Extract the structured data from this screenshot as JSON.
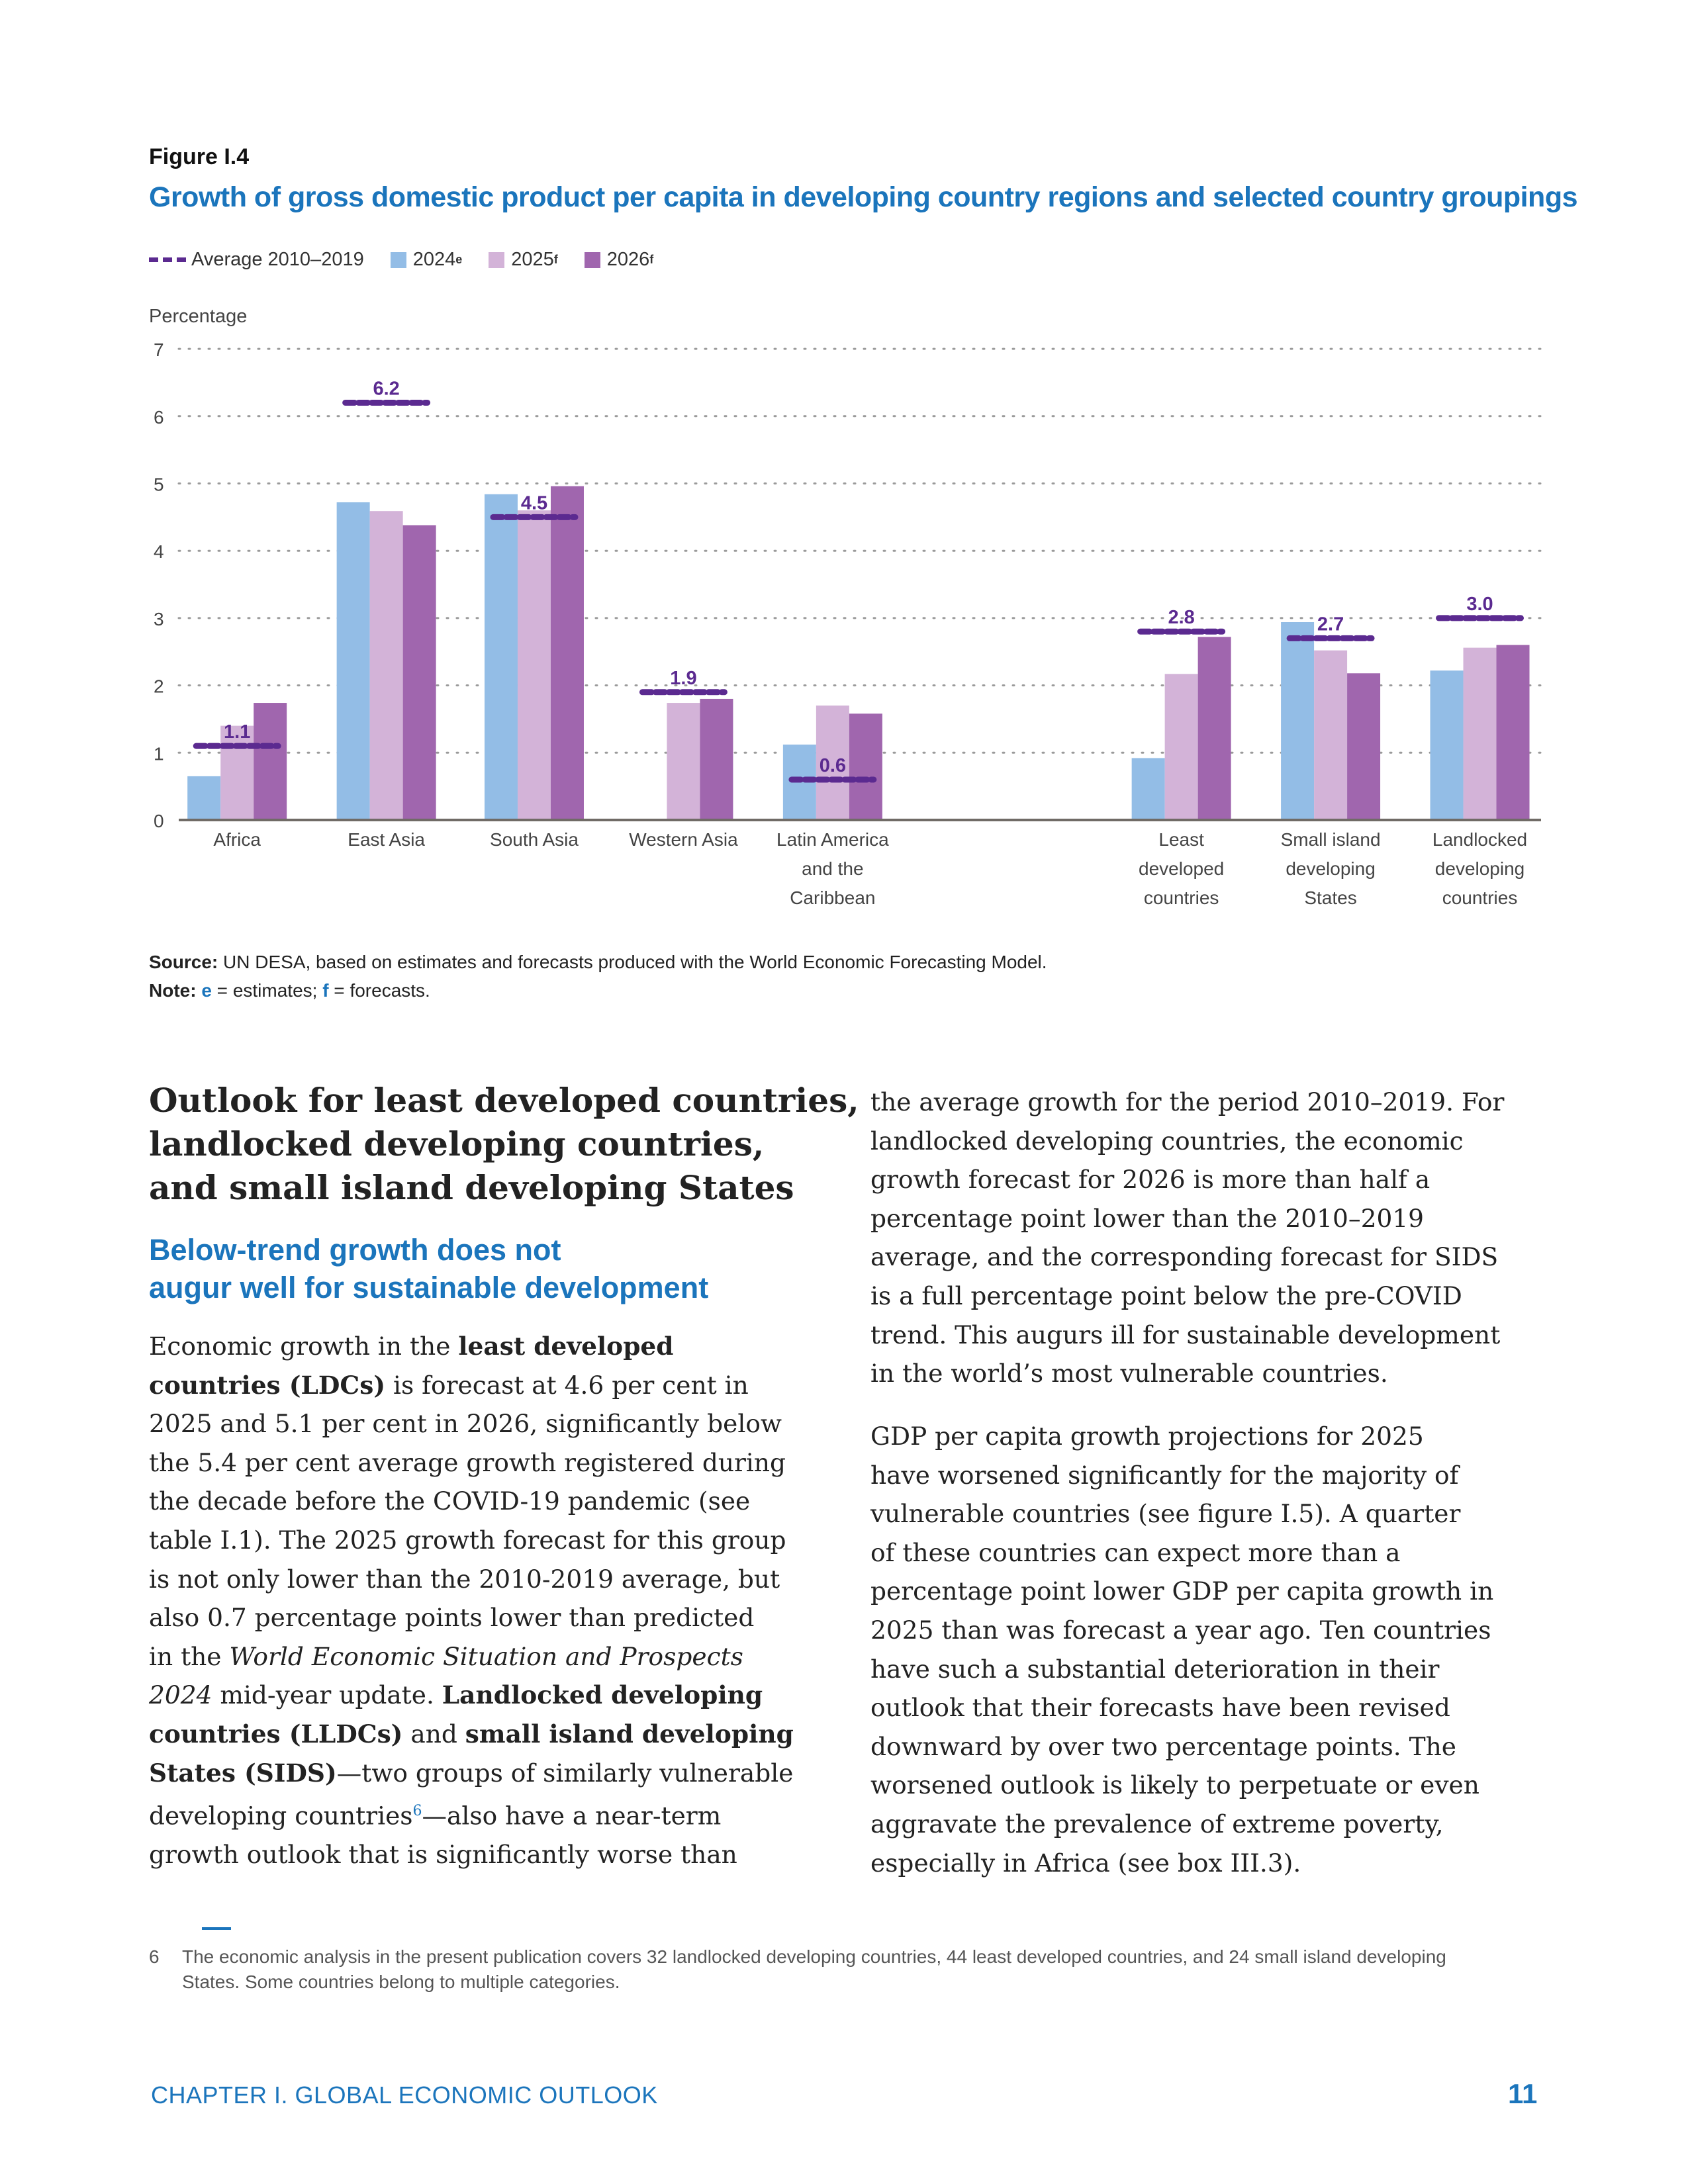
{
  "figure": {
    "label": "Figure I.4",
    "title": "Growth of gross domestic product per capita in developing country regions and selected country groupings",
    "legend": [
      {
        "label": "Average 2010–2019",
        "sup": "",
        "kind": "dash",
        "color": "#5b2a90"
      },
      {
        "label": "2024",
        "sup": "e",
        "kind": "square",
        "color": "#93bde6"
      },
      {
        "label": "2025",
        "sup": "f",
        "kind": "square",
        "color": "#d3b3d8"
      },
      {
        "label": "2026",
        "sup": "f",
        "kind": "square",
        "color": "#a066ae"
      }
    ],
    "source_label": "Source:",
    "source_text": " UN DESA, based on estimates and forecasts produced with the World Economic Forecasting Model.",
    "note_label": "Note:",
    "note_e": "e",
    "note_e_text": " = estimates; ",
    "note_f": "f",
    "note_f_text": " = forecasts."
  },
  "chart_data": {
    "type": "bar",
    "ylabel": "Percentage",
    "ylim": [
      0,
      7
    ],
    "yticks": [
      "0",
      "1",
      "2",
      "3",
      "4",
      "5",
      "6",
      "7"
    ],
    "grid": true,
    "legend_placement": "top-left",
    "categories": [
      [
        "Africa"
      ],
      [
        "East Asia"
      ],
      [
        "South Asia"
      ],
      [
        "Western Asia"
      ],
      [
        "Latin America",
        "and the",
        "Caribbean"
      ],
      [
        "Least",
        "developed",
        "countries"
      ],
      [
        "Small island",
        "developing",
        "States"
      ],
      [
        "Landlocked",
        "developing",
        "countries"
      ]
    ],
    "series": [
      {
        "name": "2024e",
        "color": "#93bde6",
        "values": [
          0.65,
          4.72,
          4.84,
          null,
          1.12,
          0.92,
          2.94,
          2.22
        ]
      },
      {
        "name": "2025f",
        "color": "#d3b3d8",
        "values": [
          1.4,
          4.59,
          4.6,
          1.74,
          1.7,
          2.17,
          2.52,
          2.56
        ]
      },
      {
        "name": "2026f",
        "color": "#a066ae",
        "values": [
          1.74,
          4.38,
          4.96,
          1.8,
          1.58,
          2.72,
          2.18,
          2.6
        ]
      }
    ],
    "average": {
      "name": "Average 2010–2019",
      "color": "#5b2a90",
      "values": [
        1.1,
        6.2,
        4.5,
        1.9,
        0.6,
        2.8,
        2.7,
        3.0
      ],
      "labels": [
        "1.1",
        "6.2",
        "4.5",
        "1.9",
        "0.6",
        "2.8",
        "2.7",
        "3.0"
      ]
    }
  },
  "article": {
    "heading": [
      "Outlook for least developed countries,",
      "landlocked developing countries,",
      "and small island developing States"
    ],
    "subheading": [
      "Below-trend growth does not",
      "augur well for sustainable development"
    ],
    "left_lines": [
      [
        [
          "n",
          "Economic growth in the "
        ],
        [
          "b",
          "least developed"
        ]
      ],
      [
        [
          "b",
          "countries (LDCs)"
        ],
        [
          "n",
          " is forecast at 4.6 per cent in"
        ]
      ],
      [
        [
          "n",
          "2025 and 5.1 per cent in 2026, significantly below"
        ]
      ],
      [
        [
          "n",
          "the 5.4 per cent average growth registered during"
        ]
      ],
      [
        [
          "n",
          "the decade before the COVID-19 pandemic (see"
        ]
      ],
      [
        [
          "n",
          "table I.1). The 2025 growth forecast for this group"
        ]
      ],
      [
        [
          "n",
          "is not only lower than the 2010-2019 average, but"
        ]
      ],
      [
        [
          "n",
          "also 0.7 percentage points lower than predicted"
        ]
      ],
      [
        [
          "n",
          "in the "
        ],
        [
          "i",
          "World Economic Situation and Prospects"
        ]
      ],
      [
        [
          "i",
          "2024"
        ],
        [
          "n",
          " mid-year update. "
        ],
        [
          "b",
          "Landlocked developing"
        ]
      ],
      [
        [
          "b",
          "countries (LLDCs)"
        ],
        [
          "n",
          " and "
        ],
        [
          "b",
          "small island developing"
        ]
      ],
      [
        [
          "b",
          "States (SIDS)"
        ],
        [
          "n",
          "—two groups of similarly vulnerable"
        ]
      ],
      [
        [
          "n",
          "developing countries"
        ],
        [
          "s",
          "6"
        ],
        [
          "n",
          "—also have a near-term"
        ]
      ],
      [
        [
          "n",
          "growth outlook that is significantly worse than"
        ]
      ]
    ],
    "right_p1": [
      "the average growth for the period 2010–2019. For",
      "landlocked developing countries, the economic",
      "growth forecast for 2026 is more than half a",
      "percentage point lower than the 2010–2019",
      "average, and the corresponding forecast for SIDS",
      "is a full percentage point below the pre-COVID",
      "trend. This augurs ill for sustainable development",
      "in the world’s most vulnerable countries."
    ],
    "right_p2": [
      "GDP per capita growth projections for 2025",
      "have worsened significantly for the majority of",
      "vulnerable countries (see figure I.5). A quarter",
      "of these countries can expect more than a",
      "percentage point lower GDP per capita growth in",
      "2025 than was forecast a year ago. Ten countries",
      "have such a substantial deterioration in their",
      "outlook that their forecasts have been revised",
      "downward by over two percentage points. The",
      "worsened outlook is likely to perpetuate or even",
      "aggravate the prevalence of extreme poverty,",
      "especially in Africa (see box III.3)."
    ]
  },
  "footnote": {
    "number": "6",
    "lines": [
      "The economic analysis in the present publication covers 32 landlocked developing countries, 44 least developed countries, and 24 small island developing",
      "States. Some countries belong to multiple categories."
    ]
  },
  "footer": {
    "chapter": "CHAPTER I. GLOBAL ECONOMIC OUTLOOK",
    "page": "11"
  }
}
